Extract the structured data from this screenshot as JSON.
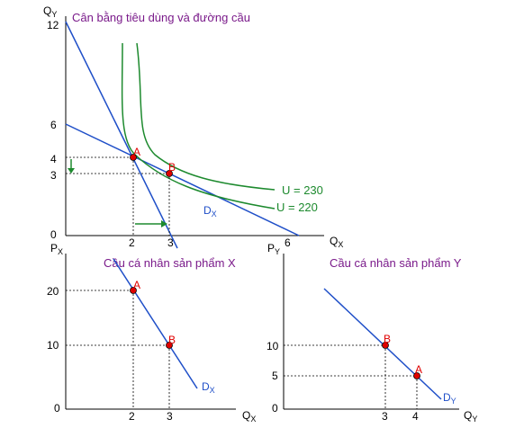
{
  "top_chart": {
    "title": "Cân bằng tiêu dùng và đường cầu",
    "y_axis_label": "Q",
    "y_axis_sub": "Y",
    "x_axis_label": "Q",
    "x_axis_sub": "X",
    "y_ticks": [
      "12",
      "6",
      "4",
      "3",
      "0"
    ],
    "x_ticks": [
      "2",
      "3",
      "6"
    ],
    "point_a": "A",
    "point_b": "B",
    "u_high": "U = 230",
    "u_low": "U = 220",
    "demand_label": "D",
    "demand_sub": "X"
  },
  "left_chart": {
    "title": "Cầu cá nhân sản phẩm X",
    "y_axis_label": "P",
    "y_axis_sub": "X",
    "x_axis_label": "Q",
    "x_axis_sub": "X",
    "y_ticks": [
      "20",
      "10",
      "0"
    ],
    "x_ticks": [
      "2",
      "3"
    ],
    "point_a": "A",
    "point_b": "B",
    "demand_label": "D",
    "demand_sub": "X"
  },
  "right_chart": {
    "title": "Cầu cá nhân sản phẩm Y",
    "y_axis_label": "P",
    "y_axis_sub": "Y",
    "x_axis_label": "Q",
    "x_axis_sub": "Y",
    "y_ticks": [
      "10",
      "5",
      "0"
    ],
    "x_ticks": [
      "3",
      "4"
    ],
    "point_a": "A",
    "point_b": "B",
    "demand_label": "D",
    "demand_sub": "Y"
  },
  "colors": {
    "blue_line": "#1f4fc8",
    "green_curve": "#1d8a2e",
    "title": "#7a1a8a",
    "point": "#e00000"
  }
}
